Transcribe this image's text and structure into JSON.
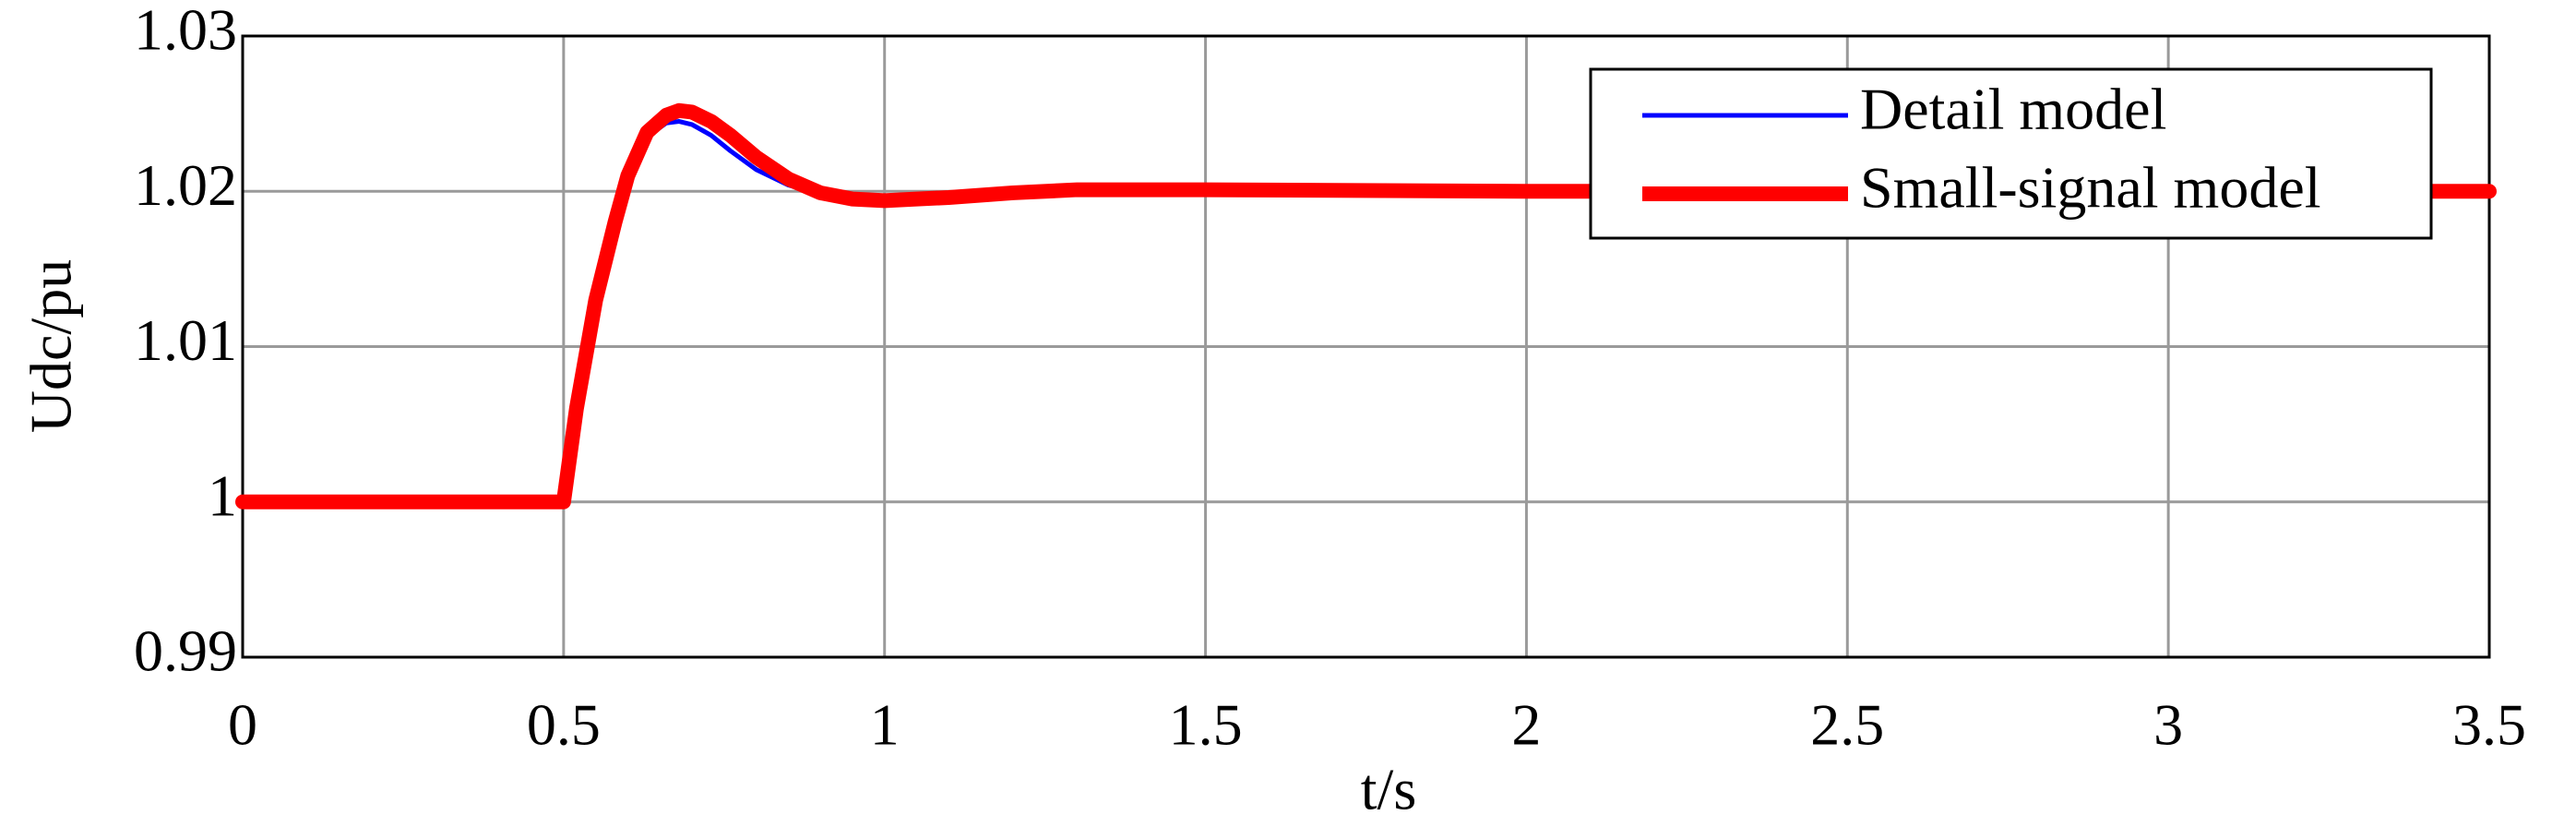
{
  "chart_data": {
    "type": "line",
    "x_label": "t/s",
    "y_label": "Udc/pu",
    "x": [
      0,
      0.5,
      0.52,
      0.55,
      0.58,
      0.6,
      0.63,
      0.66,
      0.68,
      0.7,
      0.73,
      0.76,
      0.8,
      0.85,
      0.9,
      0.95,
      1.0,
      1.05,
      1.1,
      1.2,
      1.3,
      1.5,
      2,
      2.5,
      3,
      3.5
    ],
    "series": [
      {
        "name": "Detail model",
        "color": "#0000ff",
        "values": [
          1,
          1,
          1.006,
          1.013,
          1.018,
          1.021,
          1.0235,
          1.0244,
          1.0245,
          1.0243,
          1.0236,
          1.0226,
          1.0214,
          1.0204,
          1.0198,
          1.0195,
          1.0194,
          1.0195,
          1.0196,
          1.0199,
          1.0201,
          1.0201,
          1.02,
          1.02,
          1.02,
          1.02
        ]
      },
      {
        "name": "Small-signal model",
        "color": "#ff0000",
        "values": [
          1,
          1,
          1.006,
          1.013,
          1.018,
          1.021,
          1.0238,
          1.0249,
          1.0252,
          1.0251,
          1.0245,
          1.0236,
          1.0222,
          1.0208,
          1.0199,
          1.0195,
          1.0194,
          1.0195,
          1.0196,
          1.0199,
          1.0201,
          1.0201,
          1.02,
          1.02,
          1.02,
          1.02
        ]
      }
    ],
    "xlim": [
      0,
      3.5
    ],
    "xticks": [
      0,
      0.5,
      1,
      1.5,
      2,
      2.5,
      3,
      3.5
    ],
    "ylim": [
      0.99,
      1.03
    ],
    "yticks": [
      0.99,
      1,
      1.01,
      1.02,
      1.03
    ],
    "grid": true,
    "legend": "upper right"
  }
}
